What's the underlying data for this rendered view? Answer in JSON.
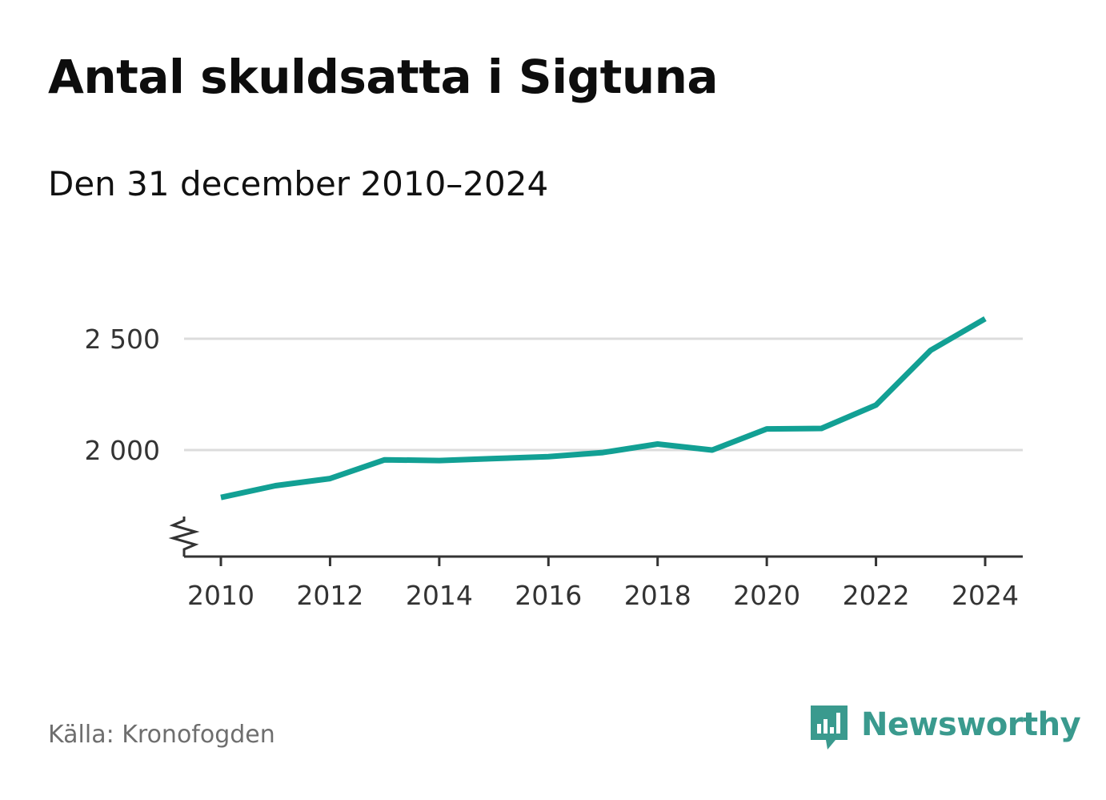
{
  "header": {
    "title": "Antal skuldsatta i Sigtuna",
    "subtitle": "Den 31 december 2010–2024"
  },
  "footer": {
    "source": "Källa: Kronofogden",
    "brand_name": "Newsworthy",
    "brand_icon": "bar-chart-speech-bubble-icon"
  },
  "colors": {
    "line": "#12a094",
    "brand": "#3a9a8e",
    "grid": "#dcdcdc",
    "axis": "#333333"
  },
  "chart_data": {
    "type": "line",
    "title": "Antal skuldsatta i Sigtuna",
    "subtitle": "Den 31 december 2010–2024",
    "xlabel": "",
    "ylabel": "",
    "x": [
      2010,
      2011,
      2012,
      2013,
      2014,
      2015,
      2016,
      2017,
      2018,
      2019,
      2020,
      2021,
      2022,
      2023,
      2024
    ],
    "series": [
      {
        "name": "Antal skuldsatta",
        "values": [
          1787,
          1840,
          1872,
          1956,
          1953,
          1962,
          1970,
          1989,
          2027,
          2000,
          2095,
          2097,
          2202,
          2448,
          2590
        ]
      }
    ],
    "xlim": [
      2010,
      2024
    ],
    "ylim": [
      1520,
      2640
    ],
    "x_ticks": [
      2010,
      2012,
      2014,
      2016,
      2018,
      2020,
      2022,
      2024
    ],
    "x_tick_labels": [
      "2010",
      "2012",
      "2014",
      "2016",
      "2018",
      "2020",
      "2022",
      "2024"
    ],
    "y_ticks": [
      2000,
      2500
    ],
    "y_tick_labels": [
      "2 000",
      "2 500"
    ],
    "grid": true,
    "axis_break": true,
    "legend": "none"
  }
}
